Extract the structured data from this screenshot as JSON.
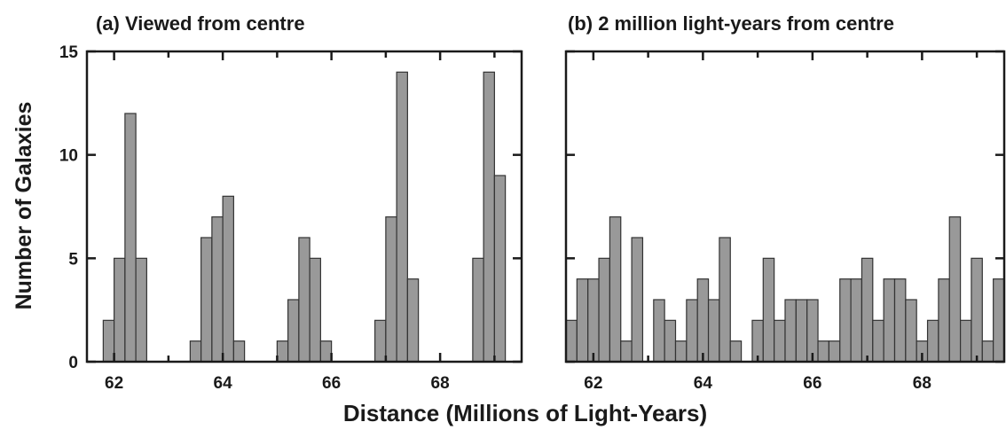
{
  "chart_data": [
    {
      "type": "bar",
      "title": "(a) Viewed from centre",
      "xlabel": "Distance (Millions of Light-Years)",
      "ylabel": "Number of Galaxies",
      "xlim": [
        61.5,
        69.5
      ],
      "ylim": [
        0,
        15
      ],
      "bin_width": 0.2,
      "xticks": [
        62,
        64,
        66,
        68
      ],
      "yticks": [
        0,
        5,
        10,
        15
      ],
      "grid": false,
      "x": [
        61.9,
        62.1,
        62.3,
        62.5,
        63.5,
        63.7,
        63.9,
        64.1,
        64.3,
        65.1,
        65.3,
        65.5,
        65.7,
        65.9,
        66.9,
        67.1,
        67.3,
        67.5,
        68.7,
        68.9,
        69.1
      ],
      "values": [
        2,
        5,
        12,
        5,
        1,
        6,
        7,
        8,
        1,
        1,
        3,
        6,
        5,
        1,
        2,
        7,
        14,
        4,
        5,
        14,
        9
      ]
    },
    {
      "type": "bar",
      "title": "(b) 2 million light-years from centre",
      "xlabel": "Distance (Millions of Light-Years)",
      "xlim": [
        61.5,
        69.5
      ],
      "ylim": [
        0,
        15
      ],
      "bin_width": 0.2,
      "xticks": [
        62,
        64,
        66,
        68
      ],
      "yticks": [
        0,
        5,
        10,
        15
      ],
      "grid": false,
      "x": [
        61.6,
        61.8,
        62.0,
        62.2,
        62.4,
        62.6,
        62.8,
        63.0,
        63.2,
        63.4,
        63.6,
        63.8,
        64.0,
        64.2,
        64.4,
        64.6,
        64.8,
        65.0,
        65.2,
        65.4,
        65.6,
        65.8,
        66.0,
        66.2,
        66.4,
        66.6,
        66.8,
        67.0,
        67.2,
        67.4,
        67.6,
        67.8,
        68.0,
        68.2,
        68.4,
        68.6,
        68.8,
        69.0,
        69.2,
        69.4
      ],
      "values": [
        2,
        4,
        4,
        5,
        7,
        1,
        6,
        0,
        3,
        2,
        1,
        3,
        4,
        3,
        6,
        1,
        0,
        2,
        5,
        2,
        3,
        3,
        3,
        1,
        1,
        4,
        4,
        5,
        2,
        4,
        4,
        3,
        1,
        2,
        4,
        7,
        2,
        5,
        1,
        4
      ]
    }
  ]
}
